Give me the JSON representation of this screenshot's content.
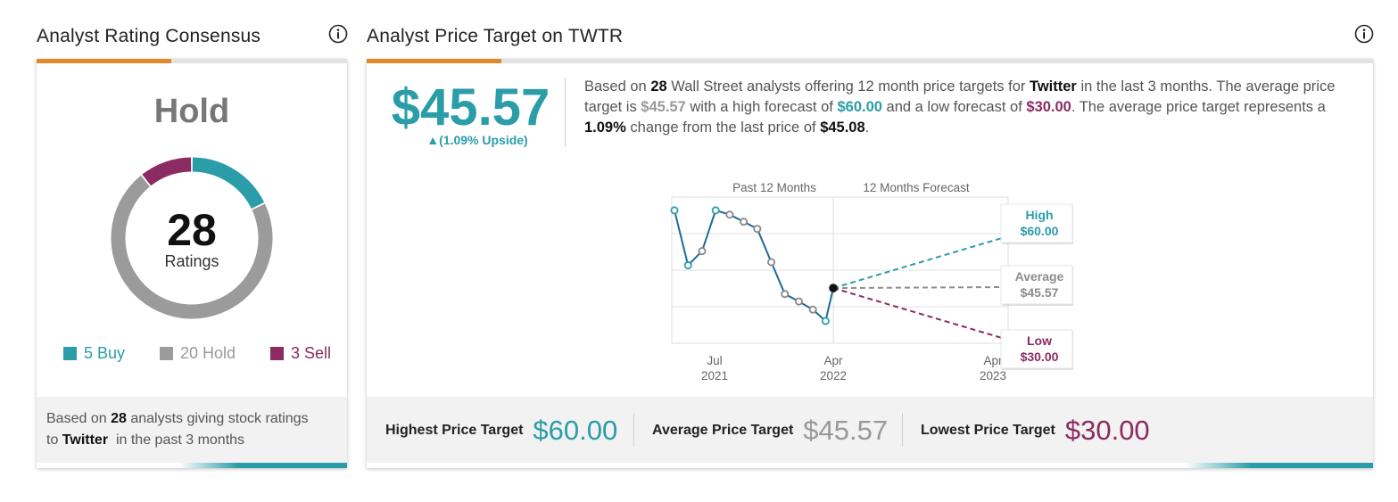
{
  "rating_panel": {
    "title": "Analyst Rating Consensus",
    "consensus": "Hold",
    "total": "28",
    "total_label": "Ratings",
    "segments": [
      {
        "label": "Buy",
        "count": 5,
        "color": "#2a9da8"
      },
      {
        "label": "Hold",
        "count": 20,
        "color": "#9b9b9b"
      },
      {
        "label": "Sell",
        "count": 3,
        "color": "#8b2b61"
      }
    ],
    "legend": [
      "5 Buy",
      "20 Hold",
      "3 Sell"
    ],
    "footer": {
      "p1": "Based on",
      "count": "28",
      "p2": "analysts giving stock ratings",
      "p3": "to",
      "company": "Twitter",
      "p4": "in the past 3 months"
    }
  },
  "price_panel": {
    "title": "Analyst Price Target on TWTR",
    "price": "$45.57",
    "upside": "▲(1.09% Upside)",
    "desc": {
      "s1": "Based on",
      "analysts": "28",
      "s2": "Wall Street analysts offering 12 month price targets for",
      "company": "Twitter",
      "s3": "in the last 3 months. The average price target is",
      "avg": "$45.57",
      "s4": "with a high forecast of",
      "high": "$60.00",
      "s5": "and a low forecast of",
      "low": "$30.00",
      "s6": ". The average price target represents a",
      "change": "1.09%",
      "s7": "change from the last price of",
      "last": "$45.08",
      "s8": "."
    },
    "footer": {
      "high_label": "Highest Price Target",
      "high_value": "$60.00",
      "avg_label": "Average Price Target",
      "avg_value": "$45.57",
      "low_label": "Lowest Price Target",
      "low_value": "$30.00"
    }
  },
  "chart_data": {
    "type": "line",
    "section_labels": [
      "Past 12 Months",
      "12 Months Forecast"
    ],
    "x_ticks": [
      {
        "month": "Jul",
        "year": "2021"
      },
      {
        "month": "Apr",
        "year": "2022"
      },
      {
        "month": "Apr",
        "year": "2023"
      }
    ],
    "history": [
      {
        "date": "2021-04-15",
        "price": 67.0
      },
      {
        "date": "2021-05-15",
        "price": 51.5
      },
      {
        "date": "2021-06-15",
        "price": 55.5
      },
      {
        "date": "2021-07-15",
        "price": 67.0
      },
      {
        "date": "2021-08-15",
        "price": 65.8
      },
      {
        "date": "2021-09-15",
        "price": 63.8
      },
      {
        "date": "2021-10-15",
        "price": 61.8
      },
      {
        "date": "2021-11-15",
        "price": 52.4
      },
      {
        "date": "2021-12-15",
        "price": 43.4
      },
      {
        "date": "2022-01-15",
        "price": 41.3
      },
      {
        "date": "2022-02-15",
        "price": 39.0
      },
      {
        "date": "2022-03-15",
        "price": 35.8
      },
      {
        "date": "2022-04-01",
        "price": 45.08
      }
    ],
    "forecast": [
      {
        "label": "High",
        "value": "$60.00",
        "price": 60.0,
        "color": "#2a9da8"
      },
      {
        "label": "Average",
        "value": "$45.57",
        "price": 45.57,
        "color": "#8c8c8c"
      },
      {
        "label": "Low",
        "value": "$30.00",
        "price": 30.0,
        "color": "#8b2b61"
      }
    ],
    "ylim": [
      30,
      70
    ],
    "grid": true
  }
}
